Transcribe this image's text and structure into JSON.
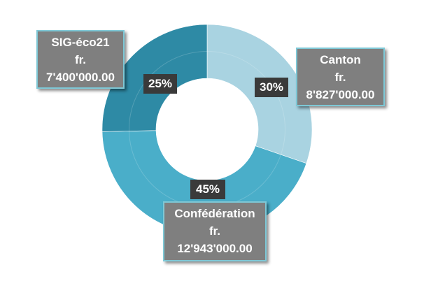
{
  "chart_data": {
    "type": "donut",
    "categories": [
      "Canton",
      "Confédération",
      "SIG-éco21"
    ],
    "values": [
      8827000,
      12943000,
      7400000
    ],
    "percent_labels": [
      "30%",
      "45%",
      "25%"
    ],
    "callouts": [
      {
        "name": "Canton",
        "currency": "fr.",
        "amount": "8'827'000.00"
      },
      {
        "name": "Confédération",
        "currency": "fr.",
        "amount": "12'943'000.00"
      },
      {
        "name": "SIG-éco21",
        "currency": "fr.",
        "amount": "7'400'000.00"
      }
    ],
    "colors": [
      "#a9d3e1",
      "#4aaec9",
      "#2e8aa5"
    ],
    "title": "",
    "legend": "none"
  }
}
